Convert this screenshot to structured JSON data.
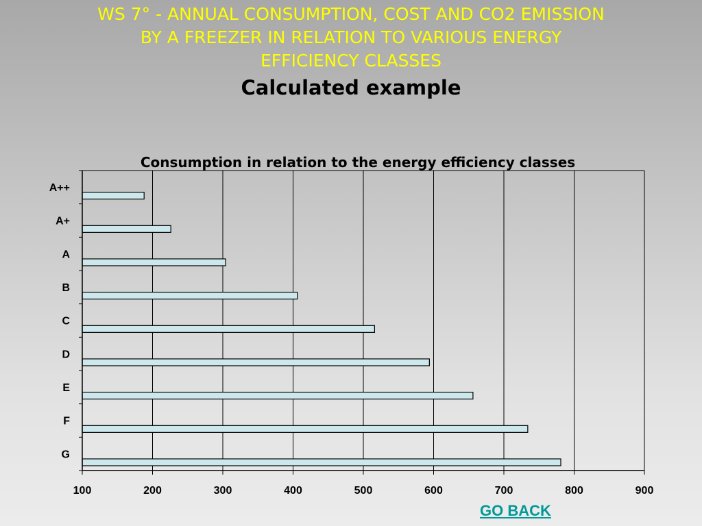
{
  "slide": {
    "title_lines": [
      "WS 7° - ANNUAL CONSUMPTION, COST AND CO2 EMISSION",
      "BY A FREEZER IN RELATION TO VARIOUS ENERGY",
      "EFFICIENCY CLASSES"
    ],
    "subtitle": "Calculated example",
    "go_back_label": "GO BACK"
  },
  "colors": {
    "title": "#ffff00",
    "bar_fill": "#cce8ec",
    "bar_stroke": "#000000",
    "gridline": "#000000",
    "link": "#009999"
  },
  "chart_data": {
    "type": "bar",
    "orientation": "horizontal",
    "title": "Consumption in relation to the energy efficiency classes",
    "xlabel": "",
    "ylabel": "",
    "categories": [
      "A++",
      "A+",
      "A",
      "B",
      "C",
      "D",
      "E",
      "F",
      "G"
    ],
    "values": [
      188,
      226,
      304,
      406,
      516,
      594,
      656,
      734,
      781
    ],
    "xlim": [
      100,
      900
    ],
    "xticks": [
      100,
      200,
      300,
      400,
      500,
      600,
      700,
      800,
      900
    ],
    "grid": "vertical",
    "legend": "none"
  }
}
